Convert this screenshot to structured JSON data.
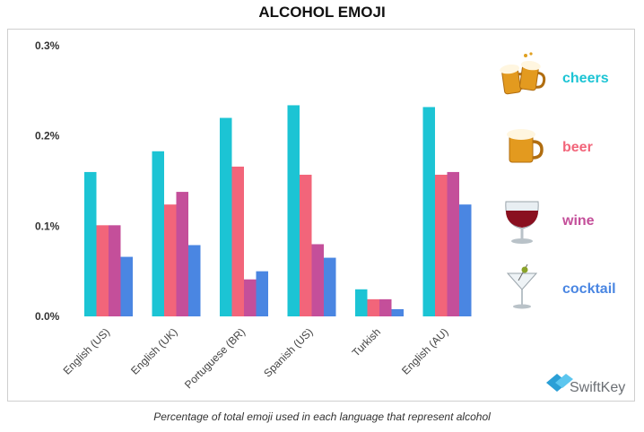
{
  "chart_data": {
    "type": "bar",
    "title": "ALCOHOL EMOJI",
    "caption": "Percentage of total emoji used in each language that represent alcohol",
    "categories": [
      "English (US)",
      "English (UK)",
      "Portuguese (BR)",
      "Spanish (US)",
      "Turkish",
      "English (AU)"
    ],
    "series": [
      {
        "name": "cheers",
        "icon": "cheers-beer-mugs-icon",
        "color": "#1cc4d4",
        "values": [
          0.16,
          0.183,
          0.22,
          0.234,
          0.03,
          0.232
        ]
      },
      {
        "name": "beer",
        "icon": "beer-mug-icon",
        "color": "#f2657a",
        "values": [
          0.101,
          0.124,
          0.166,
          0.157,
          0.019,
          0.157
        ]
      },
      {
        "name": "wine",
        "icon": "wine-glass-icon",
        "color": "#c44f9a",
        "values": [
          0.101,
          0.138,
          0.041,
          0.08,
          0.019,
          0.16
        ]
      },
      {
        "name": "cocktail",
        "icon": "cocktail-glass-icon",
        "color": "#4a86e2",
        "values": [
          0.066,
          0.079,
          0.05,
          0.065,
          0.008,
          0.124
        ]
      }
    ],
    "yticks": [
      "0.0%",
      "0.1%",
      "0.2%",
      "0.3%"
    ],
    "ylim": [
      0,
      0.3
    ],
    "xlabel": "",
    "ylabel": "",
    "grid": false,
    "legend_position": "right",
    "brand": "SwiftKey"
  }
}
